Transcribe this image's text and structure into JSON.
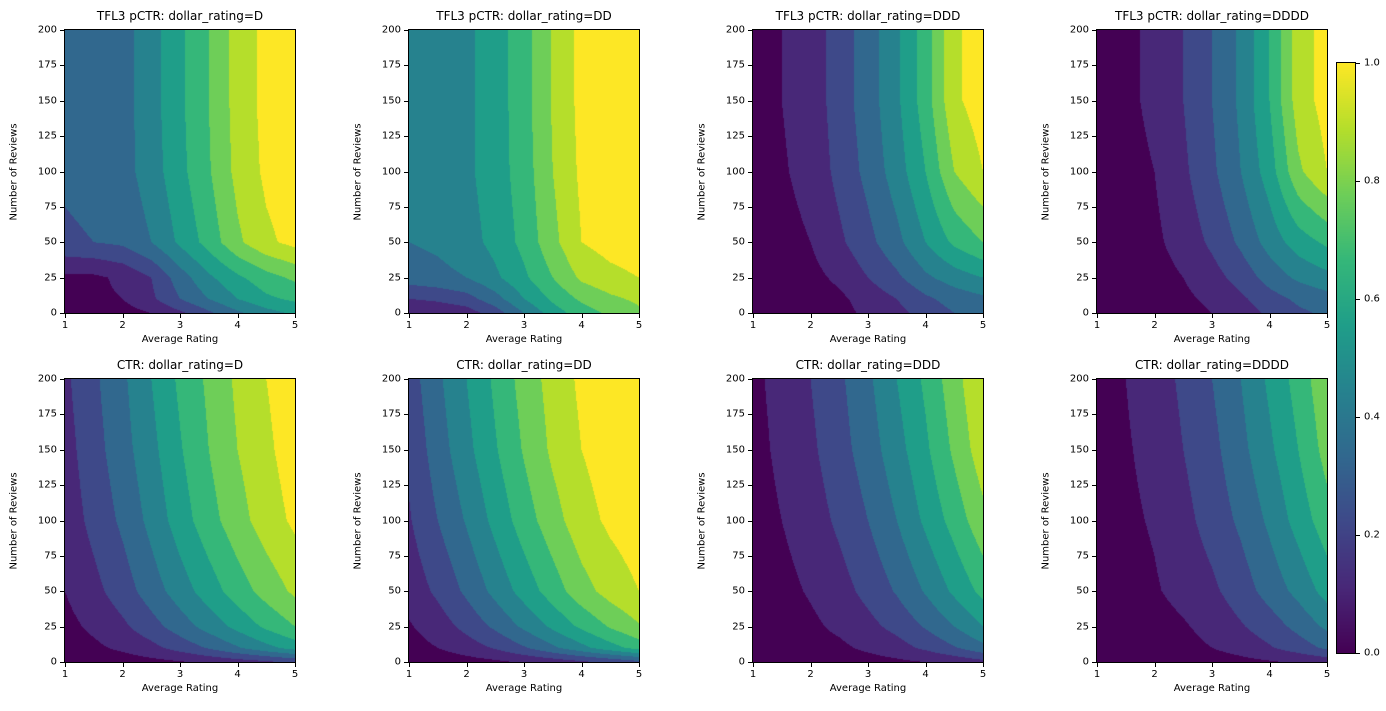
{
  "figure": {
    "background": "#ffffff"
  },
  "style": {
    "band_colors": [
      "#440154",
      "#482878",
      "#3e4989",
      "#31688e",
      "#26828e",
      "#1f9e89",
      "#35b779",
      "#6ece58",
      "#b5de2b",
      "#fde725"
    ],
    "levels": [
      0.0,
      0.1,
      0.2,
      0.3,
      0.4,
      0.5,
      0.6,
      0.7,
      0.8,
      0.9,
      1.0
    ]
  },
  "axes": {
    "xlabel": "Average Rating",
    "ylabel": "Number of Reviews",
    "x_ticks": [
      1,
      2,
      3,
      4,
      5
    ],
    "y_ticks": [
      0,
      25,
      50,
      75,
      100,
      125,
      150,
      175,
      200
    ],
    "x_range": [
      1,
      5
    ],
    "y_range": [
      0,
      200
    ]
  },
  "colorbar": {
    "range": [
      0.0,
      1.0
    ],
    "tick_values": [
      0.0,
      0.2,
      0.4,
      0.6,
      0.8,
      1.0
    ],
    "tick_labels": [
      "0.0",
      "0.2",
      "0.4",
      "0.6",
      "0.8",
      "1.0"
    ]
  },
  "chart_data": [
    {
      "type": "contour",
      "title": "TFL3 pCTR: dollar_rating=D",
      "xlabel": "Average Rating",
      "ylabel": "Number of Reviews",
      "x": [
        1,
        1.5,
        2,
        2.5,
        3,
        3.5,
        4,
        4.5,
        5
      ],
      "y": [
        0,
        10,
        25,
        50,
        100,
        150,
        200
      ],
      "values": [
        [
          0.05,
          0.05,
          0.06,
          0.1,
          0.18,
          0.28,
          0.38,
          0.46,
          0.52
        ],
        [
          0.08,
          0.08,
          0.1,
          0.18,
          0.3,
          0.4,
          0.5,
          0.58,
          0.62
        ],
        [
          0.08,
          0.08,
          0.12,
          0.2,
          0.35,
          0.48,
          0.58,
          0.66,
          0.72
        ],
        [
          0.28,
          0.3,
          0.32,
          0.4,
          0.52,
          0.64,
          0.78,
          0.88,
          0.93
        ],
        [
          0.32,
          0.34,
          0.36,
          0.45,
          0.57,
          0.69,
          0.83,
          0.92,
          0.96
        ],
        [
          0.32,
          0.34,
          0.36,
          0.46,
          0.58,
          0.7,
          0.84,
          0.93,
          0.97
        ],
        [
          0.32,
          0.34,
          0.36,
          0.46,
          0.58,
          0.7,
          0.84,
          0.93,
          0.97
        ]
      ]
    },
    {
      "type": "contour",
      "title": "TFL3 pCTR: dollar_rating=DD",
      "xlabel": "Average Rating",
      "ylabel": "Number of Reviews",
      "x": [
        1,
        1.5,
        2,
        2.5,
        3,
        3.5,
        4,
        4.5,
        5
      ],
      "y": [
        0,
        10,
        25,
        50,
        100,
        150,
        200
      ],
      "values": [
        [
          0.1,
          0.12,
          0.15,
          0.25,
          0.4,
          0.55,
          0.65,
          0.72,
          0.78
        ],
        [
          0.2,
          0.22,
          0.26,
          0.36,
          0.5,
          0.62,
          0.72,
          0.78,
          0.82
        ],
        [
          0.35,
          0.37,
          0.4,
          0.48,
          0.58,
          0.7,
          0.82,
          0.87,
          0.9
        ],
        [
          0.4,
          0.42,
          0.46,
          0.53,
          0.63,
          0.77,
          0.9,
          0.94,
          0.96
        ],
        [
          0.42,
          0.44,
          0.48,
          0.55,
          0.65,
          0.8,
          0.92,
          0.95,
          0.97
        ],
        [
          0.42,
          0.44,
          0.48,
          0.55,
          0.66,
          0.81,
          0.93,
          0.96,
          0.97
        ],
        [
          0.42,
          0.44,
          0.48,
          0.55,
          0.66,
          0.81,
          0.93,
          0.96,
          0.97
        ]
      ]
    },
    {
      "type": "contour",
      "title": "TFL3 pCTR: dollar_rating=DDD",
      "xlabel": "Average Rating",
      "ylabel": "Number of Reviews",
      "x": [
        1,
        1.5,
        2,
        2.5,
        3,
        3.5,
        4,
        4.5,
        5
      ],
      "y": [
        0,
        10,
        25,
        50,
        100,
        150,
        200
      ],
      "values": [
        [
          0.03,
          0.03,
          0.04,
          0.07,
          0.12,
          0.17,
          0.24,
          0.3,
          0.34
        ],
        [
          0.03,
          0.04,
          0.05,
          0.08,
          0.14,
          0.2,
          0.28,
          0.34,
          0.38
        ],
        [
          0.04,
          0.05,
          0.07,
          0.12,
          0.2,
          0.28,
          0.38,
          0.45,
          0.5
        ],
        [
          0.05,
          0.07,
          0.1,
          0.18,
          0.27,
          0.37,
          0.5,
          0.62,
          0.7
        ],
        [
          0.07,
          0.09,
          0.13,
          0.23,
          0.33,
          0.45,
          0.6,
          0.8,
          0.9
        ],
        [
          0.08,
          0.1,
          0.14,
          0.25,
          0.35,
          0.48,
          0.65,
          0.88,
          0.95
        ],
        [
          0.08,
          0.1,
          0.14,
          0.25,
          0.35,
          0.48,
          0.65,
          0.88,
          0.95
        ]
      ]
    },
    {
      "type": "contour",
      "title": "TFL3 pCTR: dollar_rating=DDDD",
      "xlabel": "Average Rating",
      "ylabel": "Number of Reviews",
      "x": [
        1,
        1.5,
        2,
        2.5,
        3,
        3.5,
        4,
        4.5,
        5
      ],
      "y": [
        0,
        10,
        25,
        50,
        100,
        150,
        200
      ],
      "values": [
        [
          0.02,
          0.03,
          0.04,
          0.06,
          0.1,
          0.15,
          0.22,
          0.28,
          0.32
        ],
        [
          0.03,
          0.03,
          0.05,
          0.08,
          0.12,
          0.18,
          0.26,
          0.32,
          0.36
        ],
        [
          0.03,
          0.04,
          0.06,
          0.1,
          0.16,
          0.24,
          0.34,
          0.42,
          0.47
        ],
        [
          0.04,
          0.05,
          0.08,
          0.14,
          0.22,
          0.32,
          0.44,
          0.55,
          0.62
        ],
        [
          0.05,
          0.07,
          0.1,
          0.18,
          0.28,
          0.4,
          0.55,
          0.78,
          0.9
        ],
        [
          0.06,
          0.08,
          0.12,
          0.2,
          0.3,
          0.42,
          0.6,
          0.85,
          0.94
        ],
        [
          0.06,
          0.08,
          0.12,
          0.2,
          0.3,
          0.42,
          0.6,
          0.85,
          0.94
        ]
      ]
    },
    {
      "type": "contour",
      "title": "CTR: dollar_rating=D",
      "xlabel": "Average Rating",
      "ylabel": "Number of Reviews",
      "x": [
        1,
        1.5,
        2,
        2.5,
        3,
        3.5,
        4,
        4.5,
        5
      ],
      "y": [
        0,
        10,
        25,
        50,
        100,
        150,
        200
      ],
      "values": [
        [
          0.02,
          0.03,
          0.05,
          0.07,
          0.09,
          0.12,
          0.15,
          0.18,
          0.22
        ],
        [
          0.05,
          0.08,
          0.12,
          0.17,
          0.24,
          0.31,
          0.39,
          0.47,
          0.54
        ],
        [
          0.07,
          0.12,
          0.18,
          0.26,
          0.35,
          0.44,
          0.53,
          0.62,
          0.7
        ],
        [
          0.1,
          0.17,
          0.25,
          0.35,
          0.45,
          0.55,
          0.65,
          0.74,
          0.82
        ],
        [
          0.14,
          0.23,
          0.32,
          0.43,
          0.55,
          0.66,
          0.76,
          0.85,
          0.92
        ],
        [
          0.16,
          0.26,
          0.36,
          0.47,
          0.59,
          0.7,
          0.8,
          0.88,
          0.95
        ],
        [
          0.18,
          0.28,
          0.38,
          0.5,
          0.62,
          0.72,
          0.82,
          0.9,
          0.96
        ]
      ]
    },
    {
      "type": "contour",
      "title": "CTR: dollar_rating=DD",
      "xlabel": "Average Rating",
      "ylabel": "Number of Reviews",
      "x": [
        1,
        1.5,
        2,
        2.5,
        3,
        3.5,
        4,
        4.5,
        5
      ],
      "y": [
        0,
        10,
        25,
        50,
        100,
        150,
        200
      ],
      "values": [
        [
          0.02,
          0.04,
          0.06,
          0.08,
          0.11,
          0.14,
          0.18,
          0.22,
          0.27
        ],
        [
          0.06,
          0.1,
          0.15,
          0.21,
          0.29,
          0.38,
          0.47,
          0.56,
          0.64
        ],
        [
          0.09,
          0.15,
          0.23,
          0.32,
          0.42,
          0.52,
          0.62,
          0.71,
          0.79
        ],
        [
          0.14,
          0.22,
          0.32,
          0.43,
          0.54,
          0.65,
          0.76,
          0.84,
          0.9
        ],
        [
          0.19,
          0.3,
          0.41,
          0.53,
          0.65,
          0.76,
          0.86,
          0.92,
          0.96
        ],
        [
          0.22,
          0.35,
          0.47,
          0.59,
          0.71,
          0.82,
          0.9,
          0.95,
          0.97
        ],
        [
          0.25,
          0.38,
          0.5,
          0.62,
          0.74,
          0.84,
          0.92,
          0.96,
          0.98
        ]
      ]
    },
    {
      "type": "contour",
      "title": "CTR: dollar_rating=DDD",
      "xlabel": "Average Rating",
      "ylabel": "Number of Reviews",
      "x": [
        1,
        1.5,
        2,
        2.5,
        3,
        3.5,
        4,
        4.5,
        5
      ],
      "y": [
        0,
        10,
        25,
        50,
        100,
        150,
        200
      ],
      "values": [
        [
          0.01,
          0.02,
          0.03,
          0.04,
          0.06,
          0.08,
          0.1,
          0.13,
          0.17
        ],
        [
          0.02,
          0.04,
          0.06,
          0.08,
          0.12,
          0.16,
          0.22,
          0.29,
          0.37
        ],
        [
          0.03,
          0.05,
          0.08,
          0.12,
          0.17,
          0.23,
          0.31,
          0.4,
          0.5
        ],
        [
          0.05,
          0.07,
          0.11,
          0.16,
          0.23,
          0.31,
          0.41,
          0.52,
          0.63
        ],
        [
          0.06,
          0.1,
          0.15,
          0.22,
          0.3,
          0.4,
          0.52,
          0.64,
          0.77
        ],
        [
          0.07,
          0.12,
          0.18,
          0.26,
          0.35,
          0.46,
          0.58,
          0.72,
          0.86
        ],
        [
          0.08,
          0.13,
          0.2,
          0.28,
          0.38,
          0.5,
          0.62,
          0.76,
          0.9
        ]
      ]
    },
    {
      "type": "contour",
      "title": "CTR: dollar_rating=DDDD",
      "xlabel": "Average Rating",
      "ylabel": "Number of Reviews",
      "x": [
        1,
        1.5,
        2,
        2.5,
        3,
        3.5,
        4,
        4.5,
        5
      ],
      "y": [
        0,
        10,
        25,
        50,
        100,
        150,
        200
      ],
      "values": [
        [
          0.01,
          0.02,
          0.02,
          0.03,
          0.05,
          0.07,
          0.09,
          0.11,
          0.14
        ],
        [
          0.02,
          0.03,
          0.04,
          0.07,
          0.1,
          0.14,
          0.19,
          0.25,
          0.32
        ],
        [
          0.02,
          0.04,
          0.06,
          0.09,
          0.13,
          0.19,
          0.25,
          0.33,
          0.42
        ],
        [
          0.03,
          0.06,
          0.09,
          0.13,
          0.18,
          0.25,
          0.34,
          0.43,
          0.54
        ],
        [
          0.05,
          0.08,
          0.11,
          0.17,
          0.24,
          0.32,
          0.42,
          0.54,
          0.66
        ],
        [
          0.05,
          0.09,
          0.13,
          0.2,
          0.27,
          0.37,
          0.48,
          0.6,
          0.74
        ],
        [
          0.06,
          0.1,
          0.15,
          0.22,
          0.3,
          0.4,
          0.52,
          0.64,
          0.78
        ]
      ]
    }
  ]
}
